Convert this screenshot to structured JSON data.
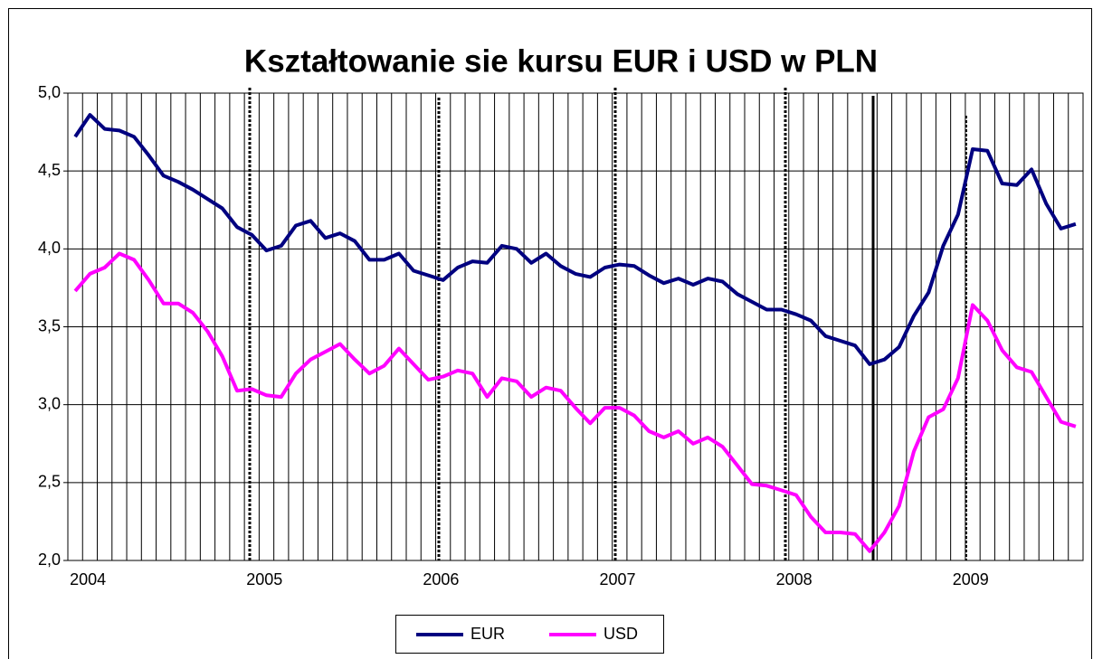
{
  "chart_data": {
    "type": "line",
    "title": "Kształtowanie sie kursu EUR i USD w PLN",
    "categories": [
      "2004",
      null,
      null,
      null,
      null,
      null,
      null,
      null,
      null,
      null,
      null,
      null,
      "2005",
      null,
      null,
      null,
      null,
      null,
      null,
      null,
      null,
      null,
      null,
      null,
      "2006",
      null,
      null,
      null,
      null,
      null,
      null,
      null,
      null,
      null,
      null,
      null,
      "2007",
      null,
      null,
      null,
      null,
      null,
      null,
      null,
      null,
      null,
      null,
      null,
      "2008",
      null,
      null,
      null,
      null,
      null,
      null,
      null,
      null,
      null,
      null,
      null,
      "2009",
      null,
      null,
      null,
      null,
      null,
      null,
      null,
      null
    ],
    "series": [
      {
        "name": "EUR",
        "color": "#000080",
        "values": [
          4.72,
          4.86,
          4.77,
          4.76,
          4.72,
          4.6,
          4.47,
          4.43,
          4.38,
          4.32,
          4.26,
          4.14,
          4.09,
          3.99,
          4.02,
          4.15,
          4.18,
          4.07,
          4.1,
          4.05,
          3.93,
          3.93,
          3.97,
          3.86,
          3.83,
          3.8,
          3.88,
          3.92,
          3.91,
          4.02,
          4.0,
          3.91,
          3.97,
          3.89,
          3.84,
          3.82,
          3.88,
          3.9,
          3.89,
          3.83,
          3.78,
          3.81,
          3.77,
          3.81,
          3.79,
          3.71,
          3.66,
          3.61,
          3.61,
          3.58,
          3.54,
          3.44,
          3.41,
          3.38,
          3.26,
          3.29,
          3.37,
          3.57,
          3.72,
          4.02,
          4.22,
          4.64,
          4.63,
          4.42,
          4.41,
          4.51,
          4.29,
          4.13,
          4.16
        ]
      },
      {
        "name": "USD",
        "color": "#ff00ff",
        "values": [
          3.73,
          3.84,
          3.88,
          3.97,
          3.93,
          3.8,
          3.65,
          3.65,
          3.59,
          3.47,
          3.31,
          3.09,
          3.1,
          3.06,
          3.05,
          3.2,
          3.29,
          3.34,
          3.39,
          3.29,
          3.2,
          3.25,
          3.36,
          3.26,
          3.16,
          3.18,
          3.22,
          3.2,
          3.05,
          3.17,
          3.15,
          3.05,
          3.11,
          3.09,
          2.98,
          2.88,
          2.98,
          2.98,
          2.93,
          2.83,
          2.79,
          2.83,
          2.75,
          2.79,
          2.73,
          2.61,
          2.49,
          2.48,
          2.45,
          2.42,
          2.28,
          2.18,
          2.18,
          2.17,
          2.06,
          2.18,
          2.35,
          2.7,
          2.92,
          2.97,
          3.17,
          3.64,
          3.54,
          3.35,
          3.24,
          3.21,
          3.05,
          2.89,
          2.86
        ]
      }
    ],
    "ylim": [
      2.0,
      5.0
    ],
    "yticks": [
      {
        "value": 2.0,
        "label": "2,0"
      },
      {
        "value": 2.5,
        "label": "2,5"
      },
      {
        "value": 3.0,
        "label": "3,0"
      },
      {
        "value": 3.5,
        "label": "3,5"
      },
      {
        "value": 4.0,
        "label": "4,0"
      },
      {
        "value": 4.5,
        "label": "4,5"
      },
      {
        "value": 5.0,
        "label": "5,0"
      }
    ],
    "grid": true,
    "legend": "bottom"
  }
}
